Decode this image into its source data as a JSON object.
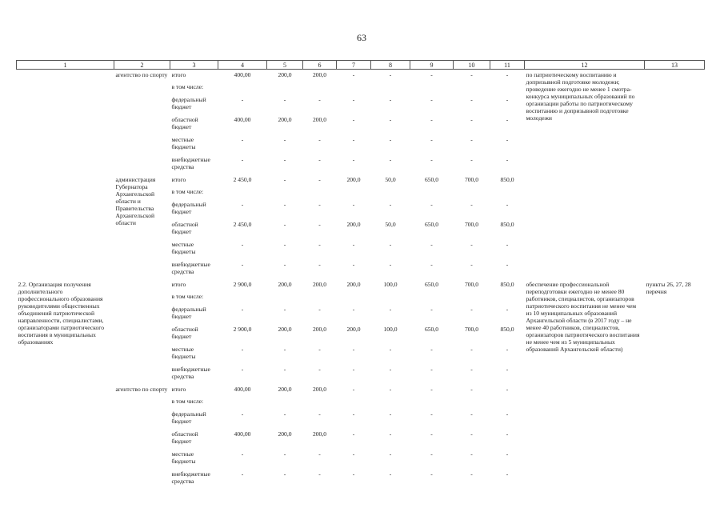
{
  "page_number": "63",
  "header": [
    "1",
    "2",
    "3",
    "4",
    "5",
    "6",
    "7",
    "8",
    "9",
    "10",
    "11",
    "12",
    "13"
  ],
  "row_labels": [
    "итого",
    "в том числе:",
    "федеральный бюджет",
    "областной бюджет",
    "местные бюджеты",
    "внебюджетные средства"
  ],
  "blocks": [
    {
      "col1": "",
      "col2": "агентство по спорту",
      "col12": "по патриотическому воспитанию и допризывной подготовке молодежи; проведение ежегодно не менее 1 смотра-конкурса муниципальных образований по организации работы по патриотическому воспитанию и допризывной подготовке молодежи",
      "col13": "",
      "rows": [
        [
          "400,00",
          "200,0",
          "200,0",
          "-",
          "-",
          "-",
          "-",
          "-"
        ],
        [],
        [
          "-",
          "-",
          "-",
          "-",
          "-",
          "-",
          "-",
          "-"
        ],
        [
          "400,00",
          "200,0",
          "200,0",
          "-",
          "-",
          "-",
          "-",
          "-"
        ],
        [
          "-",
          "-",
          "-",
          "-",
          "-",
          "-",
          "-",
          "-"
        ],
        [
          "-",
          "-",
          "-",
          "-",
          "-",
          "-",
          "-",
          "-"
        ]
      ]
    },
    {
      "col1": "",
      "col2": "администрация Губернатора Архангельской области и Правительства Архангельской области",
      "col12": "",
      "col13": "",
      "rows": [
        [
          "2 450,0",
          "-",
          "-",
          "200,0",
          "50,0",
          "650,0",
          "700,0",
          "850,0"
        ],
        [],
        [
          "-",
          "-",
          "-",
          "-",
          "-",
          "-",
          "-",
          "-"
        ],
        [
          "2 450,0",
          "-",
          "-",
          "200,0",
          "50,0",
          "650,0",
          "700,0",
          "850,0"
        ],
        [
          "-",
          "-",
          "-",
          "-",
          "-",
          "-",
          "-",
          "-"
        ],
        [
          "-",
          "-",
          "-",
          "-",
          "-",
          "-",
          "-",
          "-"
        ]
      ]
    },
    {
      "col1": "2.2. Организация получения дополнительного профессионального образования руководителями общественных объединений патриотической направленности, специалистами, организаторами патриотического воспитания в муниципальных образованиях",
      "col2": "",
      "col12": "обеспечение профессиональной переподготовки ежегодно не менее 80 работников, специалистов, организаторов патриотического воспитания не менее чем из 10 муниципальных образований Архангельской области (в 2017 году – не менее 40 работников, специалистов, организаторов патриотического воспитания не менее чем из 5 муниципальных образований Архангельской области)",
      "col13": "пункты 26, 27, 28 перечня",
      "rows": [
        [
          "2 900,0",
          "200,0",
          "200,0",
          "200,0",
          "100,0",
          "650,0",
          "700,0",
          "850,0"
        ],
        [],
        [
          "-",
          "-",
          "-",
          "-",
          "-",
          "-",
          "-",
          "-"
        ],
        [
          "2 900,0",
          "200,0",
          "200,0",
          "200,0",
          "100,0",
          "650,0",
          "700,0",
          "850,0"
        ],
        [
          "-",
          "-",
          "-",
          "-",
          "-",
          "-",
          "-",
          "-"
        ],
        [
          "-",
          "-",
          "-",
          "-",
          "-",
          "-",
          "-",
          "-"
        ]
      ]
    },
    {
      "col1": "",
      "col2": "агентство по спорту",
      "col12": "",
      "col13": "",
      "rows": [
        [
          "400,00",
          "200,0",
          "200,0",
          "-",
          "-",
          "-",
          "-",
          "-"
        ],
        [],
        [
          "-",
          "-",
          "-",
          "-",
          "-",
          "-",
          "-",
          "-"
        ],
        [
          "400,00",
          "200,0",
          "200,0",
          "-",
          "-",
          "-",
          "-",
          "-"
        ],
        [
          "-",
          "-",
          "-",
          "-",
          "-",
          "-",
          "-",
          "-"
        ],
        [
          "-",
          "-",
          "-",
          "-",
          "-",
          "-",
          "-",
          "-"
        ]
      ]
    }
  ]
}
